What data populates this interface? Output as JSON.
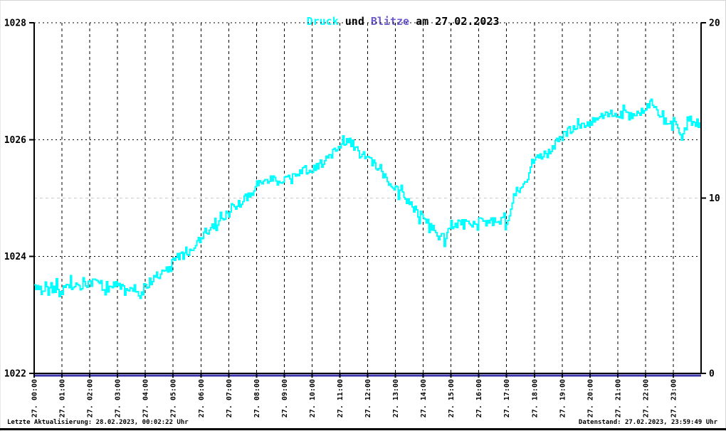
{
  "title": {
    "part_druck": "Druck",
    "part_und": " und ",
    "part_blitze": "Blitze",
    "part_date": " am 27.02.2023",
    "druck_color": "#00ffff",
    "blitze_color": "#6a5acd",
    "text_color": "#000000"
  },
  "footer": {
    "left": "Letzte Aktualisierung: 28.02.2023, 00:02:22 Uhr",
    "right": "Datenstand: 27.02.2023, 23:59:49 Uhr"
  },
  "chart_data": {
    "type": "line",
    "title": "Druck und Blitze am 27.02.2023",
    "grid": {
      "vertical_hourly_dashed": true,
      "horizontal_dotted_left_values": [
        1024,
        1026,
        1028
      ],
      "horizontal_gray_right_value": 10,
      "gray_line_color": "#c8c8c8"
    },
    "x_axis": {
      "hours": 24,
      "tick_labels": [
        "27. 00:00",
        "27. 01:00",
        "27. 02:00",
        "27. 03:00",
        "27. 04:00",
        "27. 05:00",
        "27. 06:00",
        "27. 07:00",
        "27. 08:00",
        "27. 09:00",
        "27. 10:00",
        "27. 11:00",
        "27. 12:00",
        "27. 13:00",
        "27. 14:00",
        "27. 15:00",
        "27. 16:00",
        "27. 17:00",
        "27. 18:00",
        "27. 19:00",
        "27. 20:00",
        "27. 21:00",
        "27. 22:00",
        "27. 23:00"
      ]
    },
    "y_left": {
      "range": [
        1022,
        1028
      ],
      "tick_values": [
        1022,
        1024,
        1026,
        1028
      ],
      "tick_labels": [
        "1022",
        "1024",
        "1026",
        "1028"
      ]
    },
    "y_right": {
      "range": [
        0,
        20
      ],
      "tick_values": [
        0,
        10,
        20
      ],
      "tick_labels": [
        "0",
        "10",
        "20"
      ]
    },
    "series": [
      {
        "name": "Druck",
        "axis": "left",
        "color": "#00ffff",
        "style": "noisy-step",
        "noise_amplitude": 0.16,
        "anchors": [
          [
            0,
            1023.45
          ],
          [
            30,
            1023.4
          ],
          [
            60,
            1023.5
          ],
          [
            90,
            1023.5
          ],
          [
            120,
            1023.55
          ],
          [
            150,
            1023.5
          ],
          [
            180,
            1023.5
          ],
          [
            210,
            1023.45
          ],
          [
            225,
            1023.3
          ],
          [
            240,
            1023.5
          ],
          [
            270,
            1023.7
          ],
          [
            300,
            1023.95
          ],
          [
            330,
            1024.05
          ],
          [
            360,
            1024.3
          ],
          [
            390,
            1024.55
          ],
          [
            420,
            1024.75
          ],
          [
            450,
            1024.95
          ],
          [
            480,
            1025.2
          ],
          [
            510,
            1025.3
          ],
          [
            540,
            1025.3
          ],
          [
            570,
            1025.45
          ],
          [
            600,
            1025.5
          ],
          [
            630,
            1025.65
          ],
          [
            660,
            1025.9
          ],
          [
            675,
            1026.0
          ],
          [
            690,
            1025.9
          ],
          [
            720,
            1025.65
          ],
          [
            750,
            1025.45
          ],
          [
            780,
            1025.15
          ],
          [
            810,
            1024.9
          ],
          [
            840,
            1024.65
          ],
          [
            870,
            1024.45
          ],
          [
            885,
            1024.3
          ],
          [
            900,
            1024.55
          ],
          [
            930,
            1024.55
          ],
          [
            960,
            1024.6
          ],
          [
            990,
            1024.65
          ],
          [
            1020,
            1024.6
          ],
          [
            1035,
            1025.0
          ],
          [
            1050,
            1025.1
          ],
          [
            1080,
            1025.65
          ],
          [
            1110,
            1025.8
          ],
          [
            1140,
            1026.05
          ],
          [
            1170,
            1026.25
          ],
          [
            1200,
            1026.3
          ],
          [
            1230,
            1026.4
          ],
          [
            1260,
            1026.45
          ],
          [
            1290,
            1026.4
          ],
          [
            1320,
            1026.55
          ],
          [
            1332,
            1026.7
          ],
          [
            1350,
            1026.35
          ],
          [
            1380,
            1026.3
          ],
          [
            1395,
            1026.05
          ],
          [
            1410,
            1026.35
          ],
          [
            1439,
            1026.25
          ]
        ]
      },
      {
        "name": "Blitze",
        "axis": "right",
        "color": "#3d36a9",
        "style": "flat",
        "constant_value": 0
      }
    ]
  }
}
